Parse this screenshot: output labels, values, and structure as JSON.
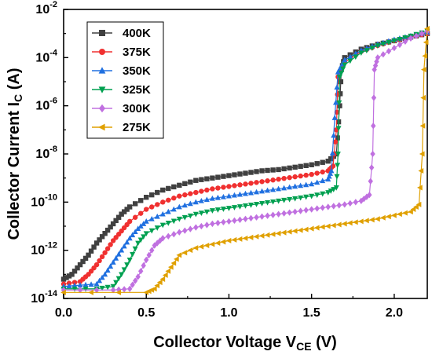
{
  "chart_data": {
    "type": "scatter",
    "xlabel": "Collector Voltage V",
    "xlabel_sub": "CE",
    "xlabel_unit": " (V)",
    "ylabel": "Collector Current I",
    "ylabel_sub": "C",
    "ylabel_unit": " (A)",
    "xlim": [
      0.0,
      2.2
    ],
    "ylim_log10": [
      -14,
      -2
    ],
    "y_scale": "log",
    "x_ticks": [
      0.0,
      0.5,
      1.0,
      1.5,
      2.0
    ],
    "x_tick_labels": [
      "0.0",
      "0.5",
      "1.0",
      "1.5",
      "2.0"
    ],
    "y_ticks_log10": [
      -14,
      -12,
      -10,
      -8,
      -6,
      -4,
      -2
    ],
    "legend_position": "top-left",
    "series": [
      {
        "name": "400K",
        "color": "#404040",
        "marker": "square",
        "x": [
          0.0,
          0.05,
          0.1,
          0.15,
          0.2,
          0.25,
          0.3,
          0.35,
          0.4,
          0.5,
          0.6,
          0.7,
          0.8,
          0.9,
          1.0,
          1.1,
          1.2,
          1.3,
          1.4,
          1.5,
          1.6,
          1.65,
          1.67,
          1.68,
          1.7,
          1.8,
          1.9,
          2.0,
          2.1,
          2.2
        ],
        "log10": [
          -13.2,
          -13.0,
          -12.6,
          -12.2,
          -11.7,
          -11.3,
          -10.9,
          -10.5,
          -10.2,
          -9.8,
          -9.5,
          -9.3,
          -9.1,
          -9.0,
          -8.9,
          -8.8,
          -8.7,
          -8.65,
          -8.55,
          -8.45,
          -8.3,
          -8.0,
          -6.0,
          -4.5,
          -4.0,
          -3.65,
          -3.45,
          -3.3,
          -3.15,
          -3.0
        ]
      },
      {
        "name": "375K",
        "color": "#f03030",
        "marker": "circle",
        "x": [
          0.0,
          0.1,
          0.15,
          0.2,
          0.25,
          0.3,
          0.35,
          0.4,
          0.5,
          0.6,
          0.7,
          0.8,
          0.9,
          1.0,
          1.1,
          1.2,
          1.3,
          1.4,
          1.5,
          1.6,
          1.63,
          1.65,
          1.66,
          1.7,
          1.8,
          1.9,
          2.0,
          2.1,
          2.2
        ],
        "log10": [
          -13.4,
          -13.3,
          -13.0,
          -12.6,
          -12.1,
          -11.6,
          -11.2,
          -10.8,
          -10.3,
          -10.0,
          -9.75,
          -9.6,
          -9.45,
          -9.35,
          -9.25,
          -9.15,
          -9.05,
          -8.95,
          -8.85,
          -8.7,
          -8.5,
          -7.0,
          -4.8,
          -4.2,
          -3.75,
          -3.5,
          -3.3,
          -3.15,
          -3.0
        ]
      },
      {
        "name": "350K",
        "color": "#2070e0",
        "marker": "triangle-up",
        "x": [
          0.0,
          0.1,
          0.2,
          0.25,
          0.3,
          0.35,
          0.4,
          0.45,
          0.5,
          0.6,
          0.7,
          0.8,
          0.9,
          1.0,
          1.1,
          1.2,
          1.3,
          1.4,
          1.5,
          1.6,
          1.62,
          1.64,
          1.66,
          1.7,
          1.8,
          1.9,
          2.0,
          2.1,
          2.2
        ],
        "log10": [
          -13.5,
          -13.45,
          -13.4,
          -13.0,
          -12.5,
          -12.0,
          -11.5,
          -11.1,
          -10.8,
          -10.5,
          -10.2,
          -10.0,
          -9.85,
          -9.75,
          -9.65,
          -9.55,
          -9.45,
          -9.35,
          -9.25,
          -9.05,
          -8.7,
          -6.5,
          -4.6,
          -4.1,
          -3.7,
          -3.45,
          -3.25,
          -3.1,
          -2.95
        ]
      },
      {
        "name": "325K",
        "color": "#00a050",
        "marker": "triangle-down",
        "x": [
          0.0,
          0.2,
          0.3,
          0.35,
          0.4,
          0.45,
          0.5,
          0.6,
          0.7,
          0.8,
          0.9,
          1.0,
          1.1,
          1.2,
          1.3,
          1.4,
          1.5,
          1.6,
          1.65,
          1.66,
          1.67,
          1.7,
          1.8,
          1.9,
          2.0,
          2.1,
          2.2
        ],
        "log10": [
          -13.6,
          -13.6,
          -13.5,
          -13.0,
          -12.4,
          -11.7,
          -11.3,
          -10.95,
          -10.7,
          -10.5,
          -10.35,
          -10.25,
          -10.15,
          -10.05,
          -9.95,
          -9.85,
          -9.75,
          -9.6,
          -9.4,
          -8.0,
          -4.8,
          -4.3,
          -3.8,
          -3.5,
          -3.3,
          -3.1,
          -2.9
        ]
      },
      {
        "name": "300K",
        "color": "#c070e0",
        "marker": "diamond",
        "x": [
          0.0,
          0.3,
          0.4,
          0.45,
          0.5,
          0.55,
          0.6,
          0.7,
          0.8,
          0.9,
          1.0,
          1.1,
          1.2,
          1.3,
          1.4,
          1.5,
          1.6,
          1.7,
          1.8,
          1.85,
          1.87,
          1.88,
          1.9,
          2.0,
          2.1,
          2.2
        ],
        "log10": [
          -13.65,
          -13.65,
          -13.6,
          -13.1,
          -12.4,
          -11.8,
          -11.5,
          -11.25,
          -11.05,
          -10.9,
          -10.8,
          -10.7,
          -10.6,
          -10.5,
          -10.4,
          -10.3,
          -10.2,
          -10.1,
          -9.95,
          -9.7,
          -8.0,
          -4.5,
          -4.0,
          -3.6,
          -3.2,
          -2.9
        ]
      },
      {
        "name": "275K",
        "color": "#e0a000",
        "marker": "triangle-left",
        "x": [
          0.0,
          0.5,
          0.55,
          0.6,
          0.65,
          0.7,
          0.8,
          0.9,
          1.0,
          1.1,
          1.2,
          1.3,
          1.4,
          1.5,
          1.6,
          1.7,
          1.8,
          1.9,
          2.0,
          2.1,
          2.15,
          2.17,
          2.18,
          2.2
        ],
        "log10": [
          -13.75,
          -13.75,
          -13.6,
          -13.2,
          -12.7,
          -12.2,
          -11.9,
          -11.75,
          -11.6,
          -11.5,
          -11.4,
          -11.3,
          -11.2,
          -11.1,
          -11.0,
          -10.9,
          -10.8,
          -10.7,
          -10.55,
          -10.4,
          -10.1,
          -8.0,
          -4.5,
          -2.8
        ]
      }
    ]
  }
}
